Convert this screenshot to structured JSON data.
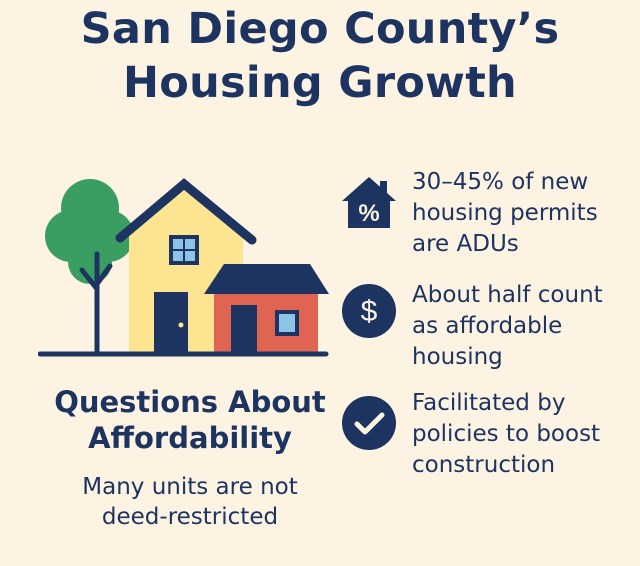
{
  "title": {
    "line1": "San Diego County’s",
    "line2": "Housing Growth"
  },
  "left_section": {
    "heading_line1": "Questions About",
    "heading_line2": "Affordability",
    "note_line1": "Many units are not",
    "note_line2": "deed-restricted"
  },
  "facts": [
    {
      "icon": "house-percent-icon",
      "icon_symbol": "%",
      "line1": "30–45% of new",
      "line2": "housing permits",
      "line3": "are ADUs"
    },
    {
      "icon": "dollar-circle-icon",
      "icon_symbol": "$",
      "line1": "About half count",
      "line2": "as affordable",
      "line3": "housing"
    },
    {
      "icon": "checkmark-circle-icon",
      "line1": "Facilitated by",
      "line2": "policies to boost",
      "line3": "construction"
    }
  ],
  "colors": {
    "background": "#fcf3e3",
    "navy": "#1d3461",
    "tree_green": "#3a9e62",
    "house_yellow": "#fde491",
    "adu_red": "#df6552",
    "window_blue": "#8ec3e8"
  }
}
